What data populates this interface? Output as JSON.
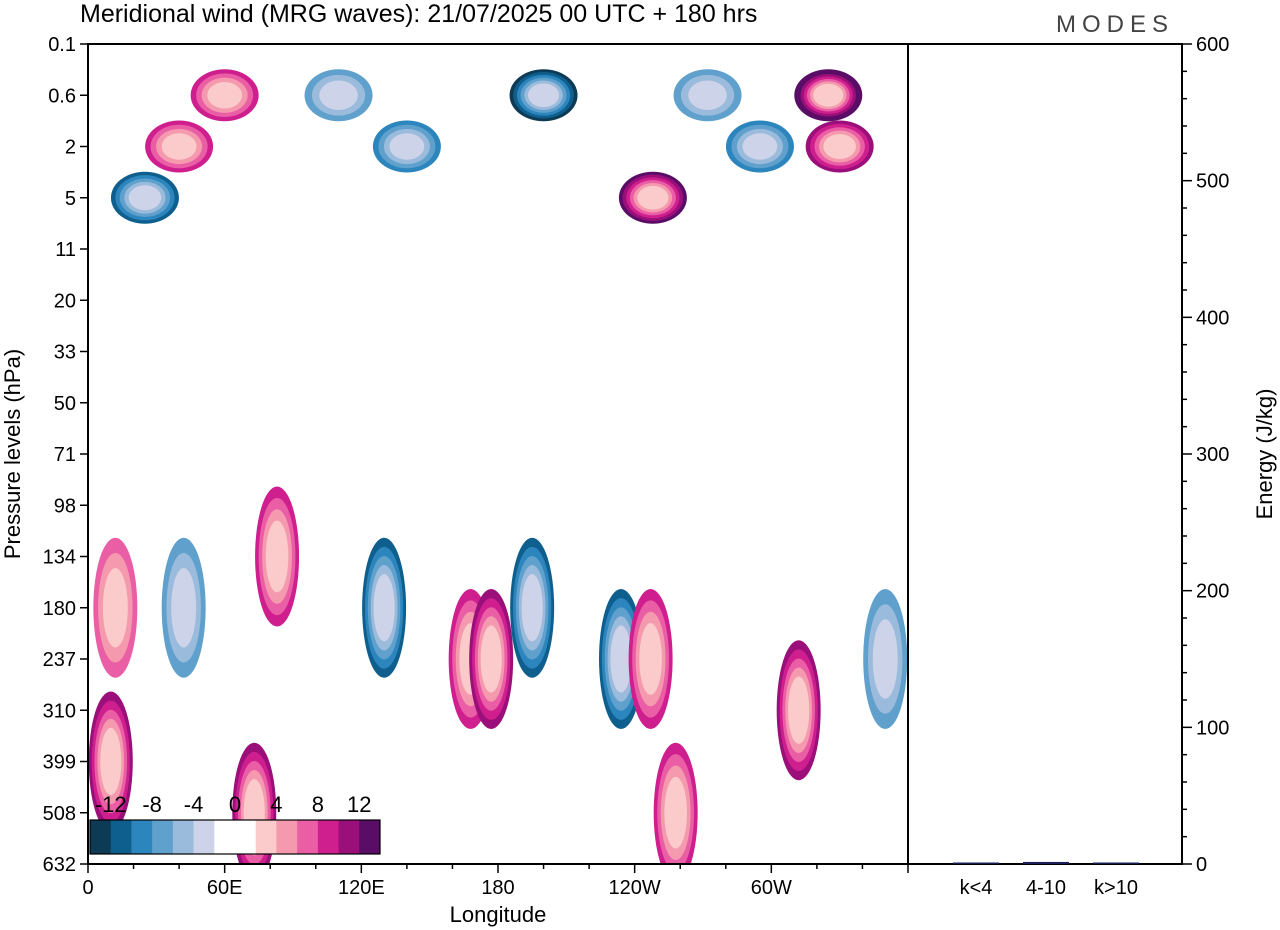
{
  "title": "Meridional wind (MRG waves):  21/07/2025  00 UTC  + 180 hrs",
  "brand": "MODES",
  "chart_data": [
    {
      "type": "heatmap",
      "title": "Meridional wind (MRG waves):  21/07/2025  00 UTC  + 180 hrs",
      "xlabel": "Longitude",
      "ylabel": "Pressure levels (hPa)",
      "x_ticks": [
        "0",
        "60E",
        "120E",
        "180",
        "120W",
        "60W"
      ],
      "x_tick_degrees": [
        0,
        60,
        120,
        180,
        240,
        300
      ],
      "x_range_degrees": [
        0,
        360
      ],
      "y_levels": [
        "0.1",
        "0.6",
        "2",
        "5",
        "11",
        "20",
        "33",
        "50",
        "71",
        "98",
        "134",
        "180",
        "237",
        "310",
        "399",
        "508",
        "632"
      ],
      "colorbar": {
        "labels": [
          "-12",
          "-8",
          "-4",
          "0",
          "4",
          "8",
          "12"
        ],
        "levels": [
          -14,
          -12,
          -10,
          -8,
          -6,
          -4,
          -2,
          0,
          2,
          4,
          6,
          8,
          10,
          12,
          14
        ],
        "colors": [
          "#0d3a55",
          "#0f5f8e",
          "#2c86bd",
          "#5fa0cc",
          "#9bbbdc",
          "#cdd3e8",
          "#ffffff",
          "#ffffff",
          "#fbcaca",
          "#f59aae",
          "#ea5ea6",
          "#cf1f8f",
          "#9b0f7a",
          "#5a0d66"
        ]
      },
      "features": [
        {
          "lon": 10,
          "level": "399",
          "value": 10
        },
        {
          "lon": 12,
          "level": "180",
          "value": 6
        },
        {
          "lon": 25,
          "level": "5",
          "value": -10
        },
        {
          "lon": 42,
          "level": "180",
          "value": -6
        },
        {
          "lon": 40,
          "level": "2",
          "value": 8
        },
        {
          "lon": 60,
          "level": "0.6",
          "value": 8
        },
        {
          "lon": 73,
          "level": "508",
          "value": 10
        },
        {
          "lon": 83,
          "level": "134",
          "value": 8
        },
        {
          "lon": 110,
          "level": "0.6",
          "value": -6
        },
        {
          "lon": 130,
          "level": "180",
          "value": -10
        },
        {
          "lon": 140,
          "level": "2",
          "value": -8
        },
        {
          "lon": 168,
          "level": "237",
          "value": 8
        },
        {
          "lon": 177,
          "level": "237",
          "value": 10
        },
        {
          "lon": 195,
          "level": "180",
          "value": -10
        },
        {
          "lon": 200,
          "level": "0.6",
          "value": -12
        },
        {
          "lon": 234,
          "level": "237",
          "value": -10
        },
        {
          "lon": 248,
          "level": "5",
          "value": 12
        },
        {
          "lon": 247,
          "level": "237",
          "value": 8
        },
        {
          "lon": 258,
          "level": "508",
          "value": 8
        },
        {
          "lon": 272,
          "level": "0.6",
          "value": -6
        },
        {
          "lon": 295,
          "level": "2",
          "value": -8
        },
        {
          "lon": 312,
          "level": "310",
          "value": 10
        },
        {
          "lon": 325,
          "level": "0.6",
          "value": 14
        },
        {
          "lon": 330,
          "level": "2",
          "value": 10
        },
        {
          "lon": 350,
          "level": "237",
          "value": -6
        }
      ]
    },
    {
      "type": "bar",
      "categories": [
        "k<4",
        "4-10",
        "k>10"
      ],
      "values": [
        0.3,
        1.5,
        0.3
      ],
      "ylabel": "Energy (J/kg)",
      "ylim": [
        0,
        600
      ],
      "y_ticks": [
        "0",
        "100",
        "200",
        "300",
        "400",
        "500",
        "600"
      ],
      "colors": [
        "#1a1f5a",
        "#1a1f5a",
        "#1a1f5a"
      ]
    }
  ]
}
